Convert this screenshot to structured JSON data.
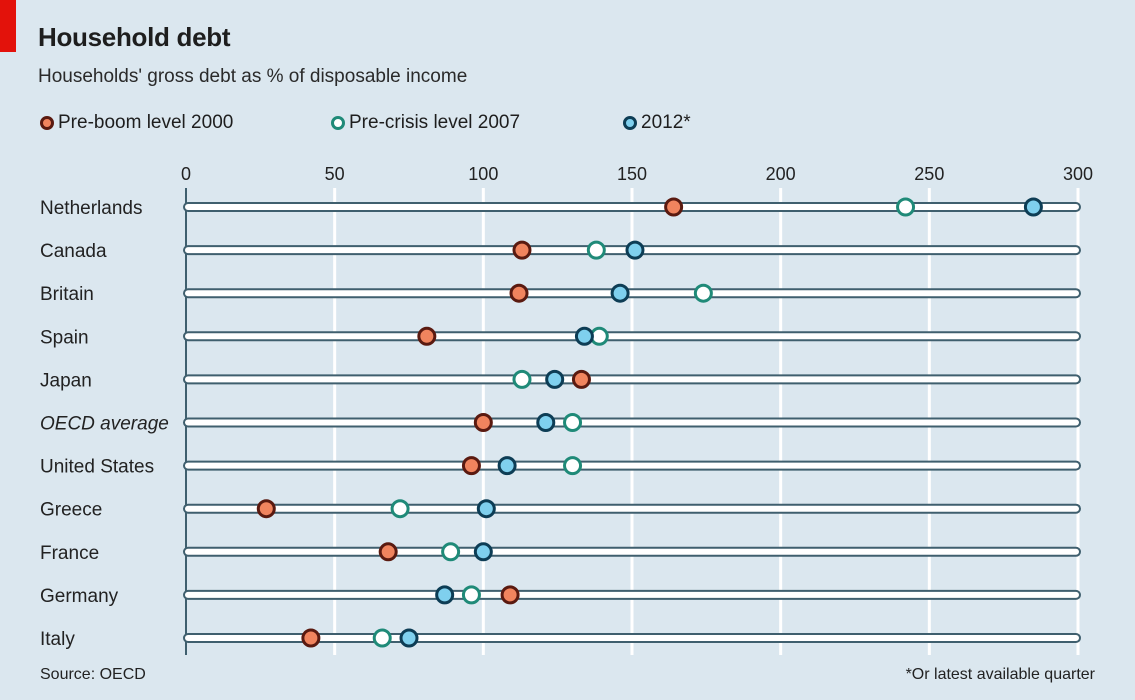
{
  "chart_data": {
    "type": "scatter",
    "title": "Household debt",
    "subtitle": "Households' gross debt as % of disposable income",
    "xlabel": "",
    "ylabel": "",
    "xlim": [
      0,
      300
    ],
    "xticks": [
      0,
      50,
      100,
      150,
      200,
      250,
      300
    ],
    "grid": true,
    "legend_position": "top-left",
    "categories": [
      "Netherlands",
      "Canada",
      "Britain",
      "Spain",
      "Japan",
      "OECD average",
      "United States",
      "Greece",
      "France",
      "Germany",
      "Italy"
    ],
    "series": [
      {
        "name": "Pre-boom level 2000",
        "color": "#f0845e",
        "stroke": "#5a1a10",
        "values": [
          164,
          113,
          112,
          81,
          133,
          100,
          96,
          27,
          68,
          109,
          42
        ]
      },
      {
        "name": "Pre-crisis level 2007",
        "color": "#ffffff",
        "stroke": "#1f8a78",
        "values": [
          242,
          138,
          174,
          139,
          113,
          130,
          130,
          72,
          89,
          96,
          66
        ]
      },
      {
        "name": "2012*",
        "color": "#7fd0ee",
        "stroke": "#0d3d55",
        "values": [
          285,
          151,
          146,
          134,
          124,
          121,
          108,
          101,
          100,
          87,
          75
        ]
      }
    ],
    "source": "Source: OECD",
    "footnote": "*Or latest available quarter"
  }
}
